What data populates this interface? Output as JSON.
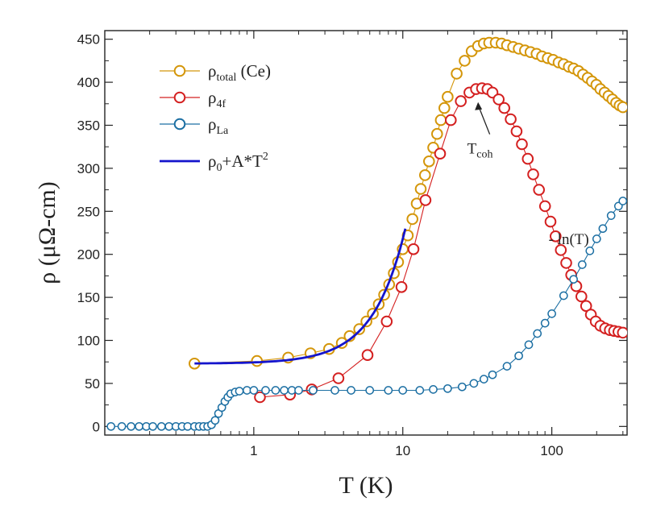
{
  "chart_data": {
    "type": "line",
    "x_scale": "log",
    "y_scale": "linear",
    "xlim": [
      0.1,
      320
    ],
    "ylim": [
      -10,
      460
    ],
    "x_ticks": [
      1,
      10,
      100
    ],
    "x_tick_labels": [
      "1",
      "10",
      "100"
    ],
    "y_ticks": [
      0,
      50,
      100,
      150,
      200,
      250,
      300,
      350,
      400,
      450
    ],
    "y_tick_labels": [
      "0",
      "50",
      "100",
      "150",
      "200",
      "250",
      "300",
      "350",
      "400",
      "450"
    ],
    "xlabel": "T (K)",
    "ylabel": "ρ (μΩ-cm)",
    "grid": false,
    "legend_position": "top-left",
    "series": [
      {
        "name": "ρtotal (Ce)",
        "legend_main": "ρ",
        "legend_sub": "total",
        "legend_suffix": " (Ce)",
        "color": "#d4960a",
        "marker": "open-circle",
        "marker_size": "large",
        "x": [
          0.4,
          1.05,
          1.7,
          2.4,
          3.2,
          3.9,
          4.4,
          5.1,
          5.7,
          6.3,
          6.9,
          7.5,
          8.1,
          8.7,
          9.3,
          10,
          10.8,
          11.6,
          12.4,
          13.2,
          14.1,
          15,
          16,
          17,
          18,
          19,
          20,
          23,
          26,
          29,
          32,
          35,
          38,
          42,
          46,
          50,
          55,
          60,
          66,
          72,
          79,
          86,
          94,
          102,
          111,
          120,
          130,
          140,
          151,
          162,
          174,
          186,
          199,
          212,
          226,
          240,
          255,
          270,
          285,
          300
        ],
        "y": [
          73,
          76,
          80,
          85,
          90,
          97,
          105,
          113,
          122,
          131,
          142,
          153,
          165,
          178,
          191,
          206,
          222,
          241,
          259,
          276,
          292,
          308,
          324,
          340,
          356,
          370,
          383,
          410,
          425,
          436,
          442,
          445,
          446,
          446,
          445,
          443,
          441,
          439,
          437,
          435,
          433,
          430,
          428,
          426,
          423,
          421,
          418,
          416,
          413,
          409,
          405,
          401,
          397,
          392,
          388,
          384,
          380,
          376,
          373,
          371
        ]
      },
      {
        "name": "ρ4f",
        "legend_main": "ρ",
        "legend_sub": "4f",
        "legend_suffix": "",
        "color": "#d42020",
        "marker": "open-circle",
        "marker_size": "large",
        "x": [
          1.1,
          1.75,
          2.45,
          3.7,
          5.8,
          7.8,
          9.8,
          11.8,
          14.2,
          17.8,
          21,
          24.5,
          28,
          31,
          34,
          37,
          40,
          44,
          48,
          53,
          58,
          63,
          69,
          75,
          82,
          90,
          98,
          106,
          115,
          125,
          135,
          146,
          158,
          170,
          183,
          197,
          212,
          228,
          245,
          262,
          280,
          300
        ],
        "y": [
          34,
          37,
          43,
          56,
          83,
          122,
          162,
          206,
          263,
          317,
          356,
          378,
          388,
          392,
          393,
          392,
          388,
          380,
          370,
          357,
          343,
          328,
          311,
          293,
          275,
          256,
          238,
          221,
          205,
          190,
          176,
          163,
          151,
          140,
          130,
          122,
          117,
          114,
          112,
          111,
          110,
          109
        ]
      },
      {
        "name": "ρLa",
        "legend_main": "ρ",
        "legend_sub": "La",
        "legend_suffix": "",
        "color": "#1c6fa3",
        "marker": "open-circle",
        "marker_size": "small",
        "x": [
          0.11,
          0.13,
          0.15,
          0.17,
          0.19,
          0.21,
          0.24,
          0.27,
          0.3,
          0.33,
          0.36,
          0.4,
          0.43,
          0.46,
          0.49,
          0.52,
          0.55,
          0.58,
          0.61,
          0.64,
          0.67,
          0.7,
          0.75,
          0.8,
          0.9,
          1.0,
          1.2,
          1.4,
          1.6,
          1.8,
          2.0,
          2.5,
          3.5,
          4.5,
          6,
          8,
          10,
          13,
          16,
          20,
          25,
          30,
          35,
          40,
          50,
          60,
          70,
          80,
          90,
          100,
          120,
          140,
          160,
          180,
          200,
          220,
          250,
          280,
          300
        ],
        "y": [
          0,
          0,
          0,
          0,
          0,
          0,
          0,
          0,
          0,
          0,
          0,
          0,
          0,
          0,
          0,
          2,
          7,
          15,
          22,
          29,
          34,
          38,
          40,
          41,
          42,
          42,
          42,
          42,
          42,
          42,
          42,
          42,
          42,
          42,
          42,
          42,
          42,
          42,
          43,
          44,
          46,
          50,
          55,
          60,
          70,
          82,
          95,
          108,
          120,
          131,
          152,
          171,
          188,
          204,
          218,
          230,
          245,
          256,
          262
        ]
      },
      {
        "name": "ρ0+A*T2",
        "legend_main": "ρ",
        "legend_sub": "0",
        "legend_suffix": "+A*T",
        "legend_sup": "2",
        "color": "#1414cc",
        "marker": "none",
        "line_width": "thick",
        "rho0": 73,
        "A": 1.45,
        "x_range": [
          0.4,
          10.4
        ]
      }
    ],
    "annotations": [
      {
        "text_main": "T",
        "text_sub": "coh",
        "x": 33,
        "y": 347,
        "arrow_to_x": 32,
        "arrow_to_y": 390
      },
      {
        "text": "- ln(T)",
        "x": 130,
        "y": 212
      }
    ]
  }
}
